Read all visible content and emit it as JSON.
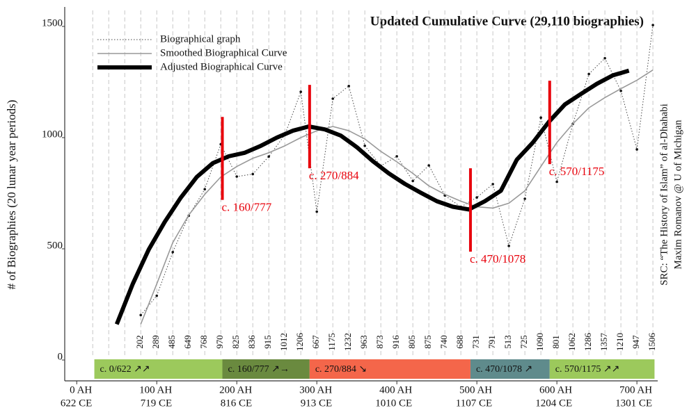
{
  "chart_data": {
    "type": "line",
    "title": "Updated Cumulative Curve (29,110 biographies)",
    "y_label": "# of Biographies (20 lunar year periods)",
    "source": [
      "SRC: “The History of Islam” of al-Dhahabi",
      "Maxim Romanov @ U of Michigan"
    ],
    "xlim": [
      -15,
      726
    ],
    "ylim": [
      0,
      1500
    ],
    "yticks": [
      0,
      500,
      1000,
      1500
    ],
    "xticks": [
      {
        "value": 0,
        "label": "0 AH"
      },
      {
        "value": 100,
        "label": "100 AH"
      },
      {
        "value": 200,
        "label": "200 AH"
      },
      {
        "value": 300,
        "label": "300 AH"
      },
      {
        "value": 400,
        "label": "400 AH"
      },
      {
        "value": 500,
        "label": "500 AH"
      },
      {
        "value": 600,
        "label": "600 AH"
      },
      {
        "value": 700,
        "label": "700 AH"
      }
    ],
    "xticks_ce": [
      "622 CE",
      "719 CE",
      "816 CE",
      "913 CE",
      "1010 CE",
      "1107 CE",
      "1204 CE",
      "1301 CE"
    ],
    "x_grid": [
      20,
      40,
      60,
      80,
      100,
      120,
      140,
      160,
      180,
      200,
      220,
      240,
      260,
      280,
      300,
      320,
      340,
      360,
      380,
      400,
      420,
      440,
      460,
      480,
      500,
      520,
      540,
      560,
      580,
      600,
      620,
      640,
      660,
      680,
      700,
      720
    ],
    "series": [
      {
        "name": "Biographical graph",
        "color": "#444444",
        "style": "dotted",
        "width": 1,
        "data_labels": true,
        "x": [
          80,
          100,
          120,
          140,
          160,
          180,
          200,
          220,
          240,
          260,
          280,
          300,
          320,
          340,
          360,
          380,
          400,
          420,
          440,
          460,
          480,
          500,
          520,
          540,
          560,
          580,
          600,
          620,
          640,
          660,
          680,
          700,
          720
        ],
        "values": [
          202,
          289,
          485,
          649,
          768,
          970,
          825,
          836,
          915,
          1012,
          1206,
          667,
          1175,
          1232,
          963,
          873,
          916,
          805,
          875,
          740,
          688,
          731,
          791,
          513,
          725,
          1090,
          801,
          1062,
          1286,
          1357,
          1210,
          947,
          1506
        ]
      },
      {
        "name": "Smoothed Biographical Curve",
        "color": "#999999",
        "style": "solid",
        "width": 1.6,
        "x": [
          80,
          100,
          120,
          140,
          160,
          180,
          200,
          220,
          240,
          260,
          280,
          300,
          320,
          340,
          360,
          380,
          400,
          420,
          440,
          460,
          480,
          500,
          520,
          540,
          560,
          580,
          600,
          620,
          640,
          660,
          680,
          700,
          720
        ],
        "values": [
          161,
          342,
          528,
          652,
          745,
          823,
          870,
          907,
          932,
          963,
          1000,
          1031,
          1050,
          1031,
          994,
          938,
          891,
          839,
          783,
          745,
          714,
          689,
          683,
          705,
          761,
          870,
          978,
          1062,
          1134,
          1180,
          1220,
          1258,
          1304
        ]
      },
      {
        "name": "Adjusted Biographical Curve",
        "color": "#000000",
        "style": "solid",
        "width": 6,
        "x": [
          50,
          70,
          90,
          110,
          130,
          150,
          170,
          190,
          210,
          230,
          250,
          270,
          290,
          310,
          330,
          350,
          370,
          390,
          410,
          430,
          450,
          470,
          490,
          510,
          530,
          550,
          570,
          590,
          610,
          630,
          650,
          670,
          690
        ],
        "values": [
          161,
          342,
          497,
          621,
          730,
          823,
          885,
          916,
          932,
          963,
          1000,
          1031,
          1050,
          1037,
          1009,
          957,
          894,
          839,
          792,
          752,
          714,
          689,
          677,
          714,
          761,
          901,
          978,
          1071,
          1149,
          1196,
          1242,
          1280,
          1301
        ]
      }
    ],
    "markers": [
      {
        "label": "c. 160/777",
        "x": 182,
        "y": [
          720,
          1093
        ],
        "color": "#e8000b"
      },
      {
        "label": "c. 270/884",
        "x": 291,
        "y": [
          862,
          1237
        ],
        "color": "#e8000b"
      },
      {
        "label": "c. 470/1078",
        "x": 492,
        "y": [
          487,
          862
        ],
        "color": "#e8000b"
      },
      {
        "label": "c. 570/1175",
        "x": 591,
        "y": [
          881,
          1256
        ],
        "color": "#e8000b"
      }
    ],
    "periods": [
      {
        "label": "c. 0/622 ↗↗",
        "from": 22,
        "to": 182,
        "color": "#9cc95c"
      },
      {
        "label": "c. 160/777 ↗→",
        "from": 182,
        "to": 291,
        "color": "#6a8a3f"
      },
      {
        "label": "c. 270/884 ↘",
        "from": 291,
        "to": 492,
        "color": "#f4664a"
      },
      {
        "label": "c. 470/1078 ↗",
        "from": 492,
        "to": 591,
        "color": "#5f8b8c"
      },
      {
        "label": "c. 570/1175 ↗↗",
        "from": 591,
        "to": 722,
        "color": "#9cc95c"
      }
    ]
  }
}
